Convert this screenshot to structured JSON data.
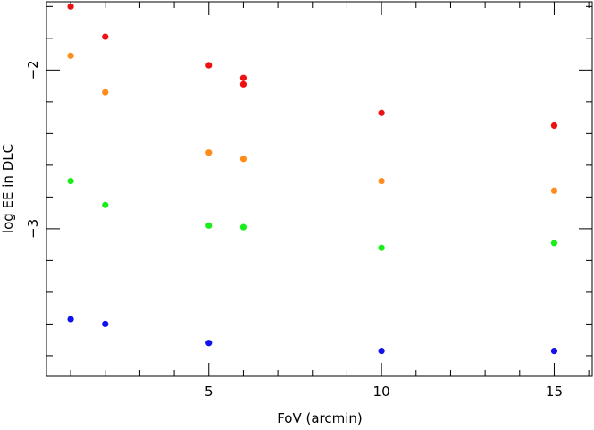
{
  "chart_data": {
    "type": "scatter",
    "title": "",
    "xlabel": "FoV (arcmin)",
    "ylabel": "log EE in DLC",
    "xlim": [
      0.3,
      16.1
    ],
    "ylim": [
      -3.93,
      -1.57
    ],
    "xticks": [
      5,
      10,
      15
    ],
    "xtick_labels": [
      "5",
      "10",
      "15"
    ],
    "xminor_step": 1,
    "yticks": [
      -2,
      -3
    ],
    "ytick_labels": [
      "−2",
      "−3"
    ],
    "yminor_step": 0.2,
    "grid": false,
    "legend": null,
    "series": [
      {
        "color": "#ee1111",
        "points": [
          [
            1,
            -1.6
          ],
          [
            2,
            -1.79
          ],
          [
            5,
            -1.97
          ],
          [
            6,
            -2.05
          ],
          [
            6,
            -2.09
          ],
          [
            10,
            -2.27
          ],
          [
            15,
            -2.35
          ]
        ]
      },
      {
        "color": "#ff8c1a",
        "points": [
          [
            1,
            -1.91
          ],
          [
            2,
            -2.14
          ],
          [
            5,
            -2.52
          ],
          [
            6,
            -2.56
          ],
          [
            10,
            -2.7
          ],
          [
            15,
            -2.76
          ]
        ]
      },
      {
        "color": "#1aee1a",
        "points": [
          [
            1,
            -2.7
          ],
          [
            2,
            -2.85
          ],
          [
            5,
            -2.98
          ],
          [
            6,
            -2.99
          ],
          [
            10,
            -3.12
          ],
          [
            15,
            -3.09
          ]
        ]
      },
      {
        "color": "#1111ee",
        "points": [
          [
            1,
            -3.57
          ],
          [
            2,
            -3.6
          ],
          [
            5,
            -3.72
          ],
          [
            10,
            -3.77
          ],
          [
            15,
            -3.77
          ]
        ]
      }
    ]
  }
}
